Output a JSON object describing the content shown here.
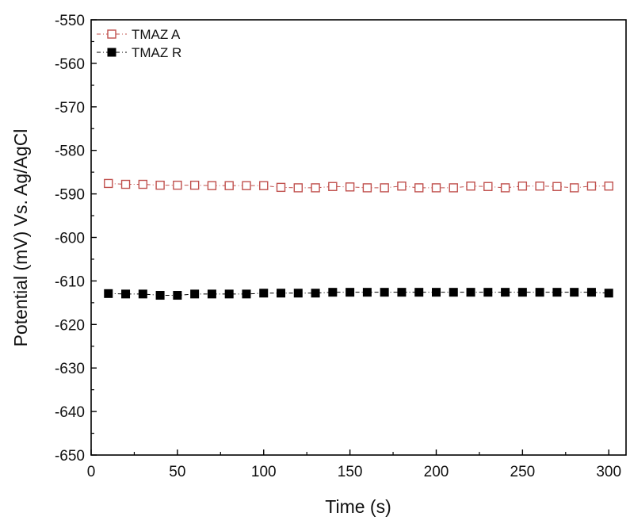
{
  "chart_data": {
    "type": "scatter",
    "title": "",
    "xlabel": "Time (s)",
    "ylabel": "Potential (mV) Vs. Ag/AgCl",
    "xlim": [
      0,
      310
    ],
    "ylim": [
      -650,
      -550
    ],
    "xticks": [
      0,
      50,
      100,
      150,
      200,
      250,
      300
    ],
    "yticks": [
      -550,
      -560,
      -570,
      -580,
      -590,
      -600,
      -610,
      -620,
      -630,
      -640,
      -650
    ],
    "grid": false,
    "legend_position": "top-left",
    "series": [
      {
        "name": "TMAZ A",
        "marker": "open-square",
        "color": "#c0504d",
        "line_style": "dash-dot",
        "x": [
          10,
          20,
          30,
          40,
          50,
          60,
          70,
          80,
          90,
          100,
          110,
          120,
          130,
          140,
          150,
          160,
          170,
          180,
          190,
          200,
          210,
          220,
          230,
          240,
          250,
          260,
          270,
          280,
          290,
          300
        ],
        "y": [
          -587.6,
          -587.8,
          -587.8,
          -588.0,
          -588.0,
          -588.0,
          -588.1,
          -588.1,
          -588.1,
          -588.1,
          -588.5,
          -588.6,
          -588.6,
          -588.3,
          -588.4,
          -588.6,
          -588.6,
          -588.2,
          -588.6,
          -588.6,
          -588.6,
          -588.2,
          -588.3,
          -588.6,
          -588.2,
          -588.2,
          -588.3,
          -588.6,
          -588.2,
          -588.2
        ]
      },
      {
        "name": "TMAZ R",
        "marker": "filled-square",
        "color": "#000000",
        "line_style": "dash-dot",
        "x": [
          10,
          20,
          30,
          40,
          50,
          60,
          70,
          80,
          90,
          100,
          110,
          120,
          130,
          140,
          150,
          160,
          170,
          180,
          190,
          200,
          210,
          220,
          230,
          240,
          250,
          260,
          270,
          280,
          290,
          300
        ],
        "y": [
          -612.9,
          -613.0,
          -613.0,
          -613.3,
          -613.3,
          -613.0,
          -613.0,
          -613.0,
          -613.0,
          -612.8,
          -612.8,
          -612.8,
          -612.8,
          -612.6,
          -612.6,
          -612.6,
          -612.6,
          -612.6,
          -612.6,
          -612.6,
          -612.6,
          -612.6,
          -612.6,
          -612.6,
          -612.6,
          -612.6,
          -612.6,
          -612.6,
          -612.6,
          -612.8
        ]
      }
    ]
  }
}
